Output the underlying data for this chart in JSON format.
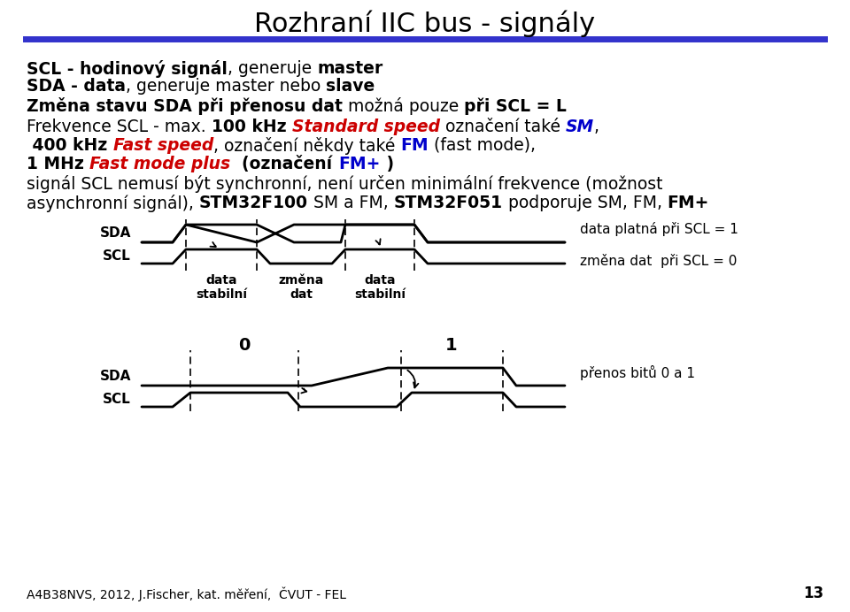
{
  "title": "Rozhraní IIC bus - signály",
  "bg_color": "#ffffff",
  "divider_color": "#3333cc",
  "footer": "A4B38NVS, 2012, J.Fischer, kat. měření,  ČVUT - FEL",
  "page_num": "13",
  "fig_w": 9.6,
  "fig_h": 6.92,
  "dpi": 100
}
